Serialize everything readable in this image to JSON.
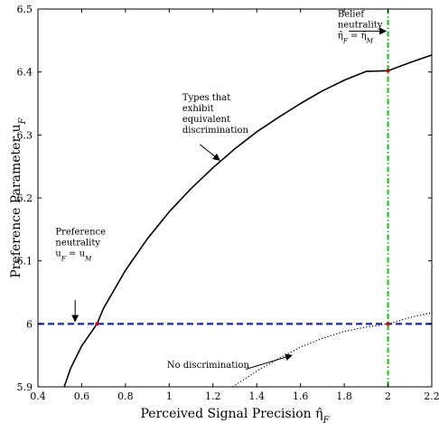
{
  "chart_data": {
    "type": "line",
    "xlabel": "Perceived Signal Precision η̂_F",
    "ylabel": "Preference Parameter u_F",
    "xlim": [
      0.4,
      2.2
    ],
    "ylim": [
      5.9,
      6.5
    ],
    "xticks": [
      0.4,
      0.6,
      0.8,
      1,
      1.2,
      1.4,
      1.6,
      1.8,
      2,
      2.2
    ],
    "yticks": [
      5.9,
      6,
      6.1,
      6.2,
      6.3,
      6.4,
      6.5
    ],
    "xtick_labels": [
      "0.4",
      "0.6",
      "0.8",
      "1",
      "1.2",
      "1.4",
      "1.6",
      "1.8",
      "2",
      "2.2"
    ],
    "ytick_labels": [
      "5.9",
      "6",
      "6.1",
      "6.2",
      "6.3",
      "6.4",
      "6.5"
    ],
    "grid": false,
    "series": [
      {
        "style": "solid",
        "color": "#000000",
        "x": [
          0.52,
          0.55,
          0.6,
          0.67,
          0.7,
          0.8,
          0.9,
          1.0,
          1.1,
          1.2,
          1.3,
          1.4,
          1.5,
          1.6,
          1.7,
          1.8,
          1.9,
          2.0,
          2.1,
          2.2
        ],
        "y": [
          5.9,
          5.93,
          5.965,
          6.0,
          6.025,
          6.085,
          6.135,
          6.178,
          6.215,
          6.248,
          6.278,
          6.305,
          6.328,
          6.35,
          6.37,
          6.387,
          6.401,
          6.402,
          6.415,
          6.427
        ]
      },
      {
        "style": "dotted",
        "color": "#000000",
        "x": [
          1.29,
          1.4,
          1.5,
          1.6,
          1.7,
          1.8,
          1.9,
          2.0,
          2.1,
          2.2
        ],
        "y": [
          5.9,
          5.925,
          5.945,
          5.963,
          5.977,
          5.988,
          5.995,
          6.0,
          6.01,
          6.018
        ]
      },
      {
        "style": "dashed",
        "color": "#1f2fd6",
        "x": [
          0.4,
          2.2
        ],
        "y": [
          6.0,
          6.0
        ]
      },
      {
        "style": "dashdot",
        "color": "#22c91d",
        "x": [
          2.0,
          2.0
        ],
        "y": [
          5.9,
          6.5
        ]
      }
    ],
    "markers": [
      {
        "x": 0.67,
        "y": 6.0,
        "color": "#cc0000"
      },
      {
        "x": 2.0,
        "y": 6.402,
        "color": "#cc0000"
      },
      {
        "x": 2.0,
        "y": 6.0,
        "color": "#cc0000"
      }
    ],
    "annotations": [
      {
        "id": "belief",
        "lines": [
          "Belief",
          "neutrality",
          "η̂_F = η̂_M"
        ],
        "text_x": 1.77,
        "text_y": 6.488,
        "arrow_from": [
          1.82,
          6.465
        ],
        "arrow_to": [
          1.99,
          6.465
        ]
      },
      {
        "id": "types",
        "lines": [
          "Types that",
          "exhibit",
          "equivalent",
          "discrimination"
        ],
        "text_x": 1.06,
        "text_y": 6.355,
        "arrow_from": [
          1.14,
          6.285
        ],
        "arrow_to": [
          1.23,
          6.26
        ]
      },
      {
        "id": "pref",
        "lines": [
          "Preference",
          "neutrality",
          "u_F = u_M"
        ],
        "text_x": 0.48,
        "text_y": 6.142,
        "arrow_from": [
          0.57,
          6.038
        ],
        "arrow_to": [
          0.57,
          6.004
        ]
      },
      {
        "id": "nodisc",
        "lines": [
          "No discrimination"
        ],
        "text_x": 0.99,
        "text_y": 5.93,
        "arrow_from": [
          1.35,
          5.928
        ],
        "arrow_to": [
          1.56,
          5.95
        ]
      }
    ]
  }
}
